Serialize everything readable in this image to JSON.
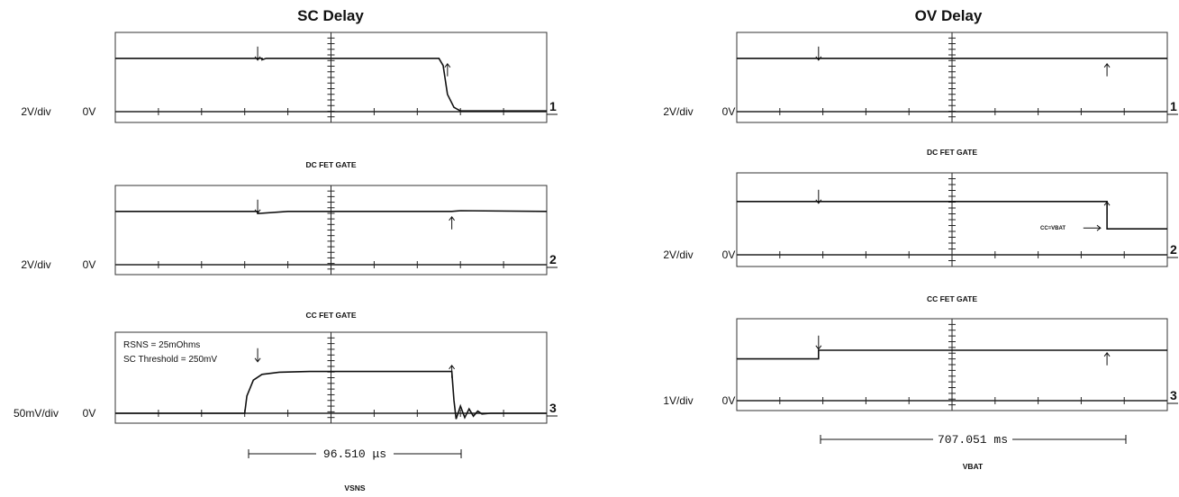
{
  "chart_data": [
    {
      "type": "line",
      "title": "SC Delay",
      "xlabel": "VSNS",
      "measurement": "96.510 μs",
      "panels": [
        {
          "channel": "1",
          "scale": "2V/div",
          "ground": "0V",
          "subtitle": "",
          "series": [
            {
              "values": [
                [
                  0,
                  3.7
                ],
                [
                  3.4,
                  3.7
                ],
                [
                  3.4,
                  3.6
                ],
                [
                  3.5,
                  3.7
                ],
                [
                  7.5,
                  3.7
                ],
                [
                  7.6,
                  3.2
                ],
                [
                  7.7,
                  1.2
                ],
                [
                  7.85,
                  0.3
                ],
                [
                  8,
                  0.05
                ],
                [
                  10,
                  0.05
                ]
              ]
            }
          ],
          "markers": [
            {
              "x": 3.3,
              "dir": "down"
            },
            {
              "x": 7.7,
              "dir": "up"
            }
          ],
          "annotations": []
        },
        {
          "channel": "2",
          "scale": "2V/div",
          "ground": "0V",
          "subtitle": "DC FET GATE",
          "series": [
            {
              "values": [
                [
                  0,
                  3.7
                ],
                [
                  3.3,
                  3.7
                ],
                [
                  3.3,
                  3.55
                ],
                [
                  4,
                  3.7
                ],
                [
                  7.8,
                  3.7
                ],
                [
                  8,
                  3.75
                ],
                [
                  10,
                  3.7
                ]
              ]
            }
          ],
          "markers": [
            {
              "x": 3.3,
              "dir": "down"
            },
            {
              "x": 7.8,
              "dir": "up"
            }
          ],
          "annotations": []
        },
        {
          "channel": "3",
          "scale": "50mV/div",
          "ground": "0V",
          "subtitle": "CC FET GATE",
          "series": [
            {
              "values": [
                [
                  0,
                  0
                ],
                [
                  3,
                  0
                ],
                [
                  3.05,
                  1.2
                ],
                [
                  3.2,
                  2.3
                ],
                [
                  3.4,
                  2.7
                ],
                [
                  3.8,
                  2.85
                ],
                [
                  4.5,
                  2.9
                ],
                [
                  7.75,
                  2.9
                ],
                [
                  7.8,
                  2.9
                ],
                [
                  7.85,
                  0.9
                ],
                [
                  7.9,
                  -0.4
                ],
                [
                  8,
                  0.5
                ],
                [
                  8.1,
                  -0.3
                ],
                [
                  8.2,
                  0.3
                ],
                [
                  8.3,
                  -0.2
                ],
                [
                  8.4,
                  0.15
                ],
                [
                  8.5,
                  -0.05
                ],
                [
                  8.7,
                  0
                ],
                [
                  10,
                  0
                ]
              ]
            }
          ],
          "markers": [
            {
              "x": 3.3,
              "dir": "down"
            },
            {
              "x": 7.8,
              "dir": "up"
            }
          ],
          "annotations": [
            "RSNS = 25mOhms",
            "SC Threshold = 250mV"
          ]
        }
      ]
    },
    {
      "type": "line",
      "title": "OV Delay",
      "xlabel": "VBAT",
      "measurement": "707.051 ms",
      "panels": [
        {
          "channel": "1",
          "scale": "2V/div",
          "ground": "0V",
          "subtitle": "",
          "series": [
            {
              "values": [
                [
                  0,
                  3.7
                ],
                [
                  10,
                  3.7
                ]
              ]
            }
          ],
          "markers": [
            {
              "x": 1.9,
              "dir": "down"
            },
            {
              "x": 8.6,
              "dir": "up"
            }
          ],
          "annotations": []
        },
        {
          "channel": "2",
          "scale": "2V/div",
          "ground": "0V",
          "subtitle": "DC FET GATE",
          "series": [
            {
              "values": [
                [
                  0,
                  3.7
                ],
                [
                  8.6,
                  3.7
                ],
                [
                  8.6,
                  1.8
                ],
                [
                  10,
                  1.8
                ]
              ]
            }
          ],
          "markers": [
            {
              "x": 1.9,
              "dir": "down"
            },
            {
              "x": 8.6,
              "dir": "up"
            }
          ],
          "annotations": [
            "CC=VBAT"
          ]
        },
        {
          "channel": "3",
          "scale": "1V/div",
          "ground": "0V",
          "subtitle": "CC FET GATE",
          "series": [
            {
              "values": [
                [
                  0,
                  2.9
                ],
                [
                  1.9,
                  2.9
                ],
                [
                  1.9,
                  3.5
                ],
                [
                  10,
                  3.5
                ]
              ]
            }
          ],
          "markers": [
            {
              "x": 1.9,
              "dir": "down"
            },
            {
              "x": 8.6,
              "dir": "up"
            }
          ],
          "annotations": []
        }
      ]
    }
  ]
}
